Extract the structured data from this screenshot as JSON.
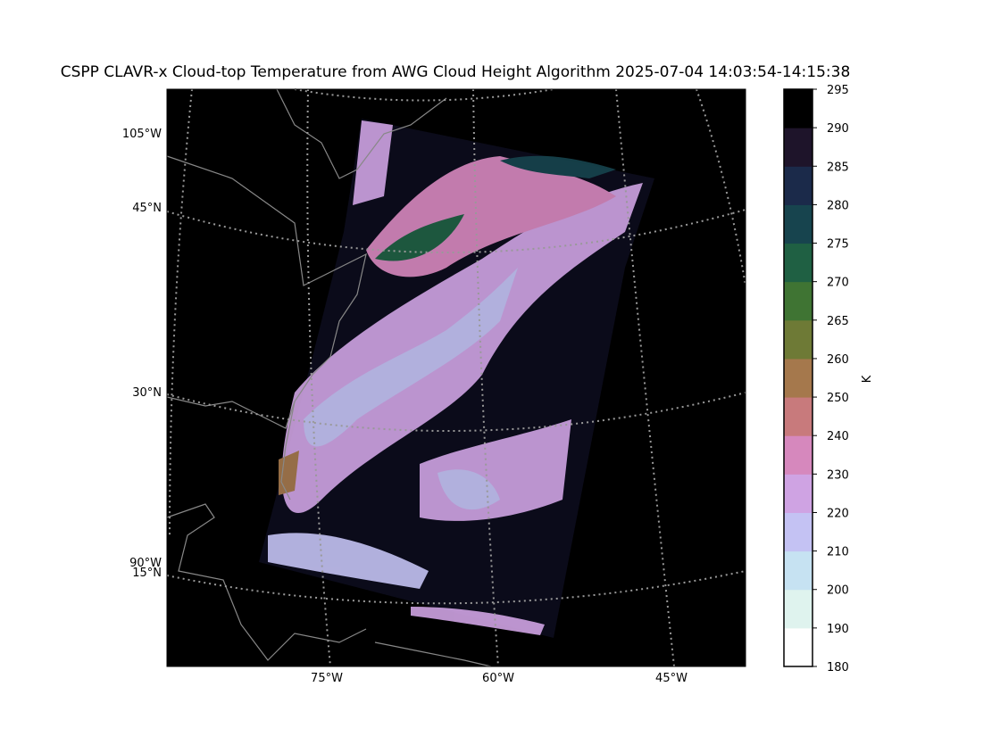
{
  "title": "CSPP CLAVR-x Cloud-top Temperature from AWG Cloud Height Algorithm 2025-07-04 14:03:54-14:15:38",
  "lon_labels": [
    "105°W",
    "90°W",
    "75°W",
    "60°W",
    "45°W"
  ],
  "lat_labels": [
    "45°N",
    "30°N",
    "15°N"
  ],
  "colorbar": {
    "label": "K",
    "ticks": [
      180,
      190,
      200,
      210,
      220,
      230,
      240,
      250,
      260,
      265,
      270,
      275,
      280,
      285,
      290,
      295
    ],
    "colors": [
      "#ffffff",
      "#dff3ee",
      "#c6e2f2",
      "#c4c2f3",
      "#cfa3e3",
      "#d688bd",
      "#c87a7c",
      "#a5784c",
      "#6e7a36",
      "#3f7433",
      "#1f6043",
      "#17444e",
      "#1b2a4a",
      "#1e142a",
      "#000000"
    ]
  }
}
